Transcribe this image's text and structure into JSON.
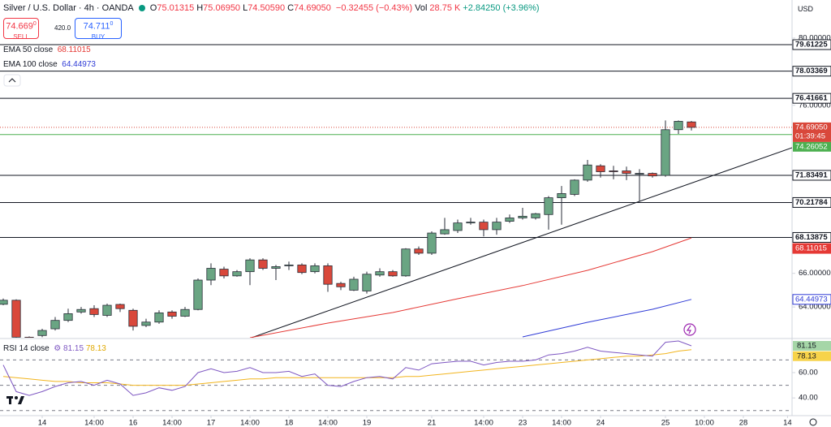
{
  "chart_data": {
    "type": "candlestick",
    "title": "Silver / U.S. Dollar · 4h · OANDA",
    "header": [
      {
        "label": "O",
        "value": "75.01315"
      },
      {
        "label": "H",
        "value": "75.06950"
      },
      {
        "label": "L",
        "value": "74.50590"
      },
      {
        "label": "C",
        "value": "74.69050"
      }
    ],
    "change": "−0.32455 (−0.43%)",
    "volume": {
      "label": "Vol",
      "value": "28.75 K"
    },
    "change_period": "+2.84250 (+3.96%)",
    "sell": {
      "price": "74.669",
      "sup": "0",
      "label": "SELL"
    },
    "spread": "420.0",
    "buy": {
      "price": "74.711",
      "sup": "0",
      "label": "BUY"
    },
    "currency": "USD",
    "up_color": "#6aa583",
    "down_color": "#d9483b",
    "x": [
      0,
      1,
      2,
      3,
      4,
      5,
      6,
      7,
      8,
      9,
      10,
      11,
      12,
      13,
      14,
      15,
      16,
      17,
      18,
      19,
      20,
      21,
      22,
      23,
      24,
      25,
      26,
      27,
      28,
      29,
      30,
      31,
      32,
      33,
      34,
      35,
      36,
      37,
      38,
      39,
      40,
      41,
      42,
      43,
      44,
      45,
      46,
      47,
      48,
      49,
      50,
      51,
      52,
      53
    ],
    "open": [
      64.16,
      64.4,
      62.2,
      62.3,
      62.7,
      63.2,
      63.7,
      63.9,
      63.5,
      64.15,
      63.8,
      62.9,
      63.1,
      63.7,
      63.45,
      63.85,
      65.6,
      66.25,
      65.85,
      66.1,
      66.8,
      66.3,
      66.45,
      66.5,
      66.1,
      66.45,
      65.4,
      65.0,
      64.95,
      65.9,
      66.1,
      65.85,
      67.45,
      67.2,
      68.35,
      68.55,
      69.0,
      69.05,
      68.6,
      69.1,
      69.3,
      69.3,
      69.5,
      70.5,
      70.7,
      71.55,
      72.4,
      72.1,
      72.1,
      71.9,
      71.95,
      71.83,
      74.55,
      75.01315
    ],
    "high": [
      64.5,
      64.45,
      62.25,
      62.7,
      63.4,
      63.9,
      64.0,
      64.1,
      64.2,
      64.2,
      63.9,
      63.3,
      63.8,
      63.8,
      64.0,
      65.7,
      66.6,
      66.4,
      66.2,
      66.9,
      66.9,
      66.5,
      66.7,
      66.6,
      66.6,
      66.6,
      65.5,
      65.8,
      66.1,
      66.3,
      66.2,
      67.5,
      67.6,
      68.5,
      69.3,
      69.2,
      69.3,
      69.2,
      69.3,
      69.5,
      69.9,
      69.6,
      70.6,
      71.2,
      71.6,
      72.75,
      72.5,
      72.4,
      72.35,
      72.2,
      72.0,
      75.1,
      75.1,
      75.0695
    ],
    "low": [
      64.1,
      62.1,
      61.9,
      62.2,
      62.6,
      63.1,
      63.6,
      63.4,
      63.4,
      63.7,
      62.6,
      62.8,
      63.0,
      63.3,
      63.4,
      63.8,
      65.3,
      65.7,
      65.8,
      65.3,
      66.2,
      65.6,
      66.2,
      65.95,
      66.0,
      64.9,
      65.0,
      64.95,
      64.8,
      65.8,
      65.8,
      65.8,
      67.1,
      67.1,
      68.3,
      68.4,
      68.9,
      68.2,
      68.3,
      69.0,
      69.2,
      69.2,
      68.6,
      68.9,
      70.6,
      71.45,
      71.7,
      71.6,
      71.55,
      70.3,
      71.7,
      71.75,
      74.3,
      74.5059
    ],
    "close": [
      64.4,
      62.2,
      62.0,
      62.6,
      63.2,
      63.6,
      63.85,
      63.55,
      64.1,
      63.9,
      62.85,
      63.1,
      63.65,
      63.45,
      63.85,
      65.6,
      66.3,
      65.85,
      66.1,
      66.8,
      66.3,
      66.4,
      66.5,
      66.05,
      66.45,
      65.35,
      65.2,
      65.65,
      65.95,
      66.1,
      65.85,
      67.45,
      67.2,
      68.4,
      68.6,
      69.0,
      69.05,
      68.6,
      69.05,
      69.3,
      69.4,
      69.55,
      70.5,
      70.75,
      71.55,
      72.45,
      72.05,
      72.05,
      71.95,
      71.95,
      71.8,
      74.55,
      75.05,
      74.6905
    ],
    "xlim": [
      -0.25,
      60.75
    ],
    "xticks": [
      {
        "value": 3,
        "label": "14"
      },
      {
        "value": 7,
        "label": "14:00"
      },
      {
        "value": 10,
        "label": "16"
      },
      {
        "value": 13,
        "label": "14:00"
      },
      {
        "value": 16,
        "label": "17"
      },
      {
        "value": 19,
        "label": "14:00"
      },
      {
        "value": 22,
        "label": "18"
      },
      {
        "value": 25,
        "label": "14:00"
      },
      {
        "value": 28,
        "label": "19"
      },
      {
        "value": 33,
        "label": "21"
      },
      {
        "value": 37,
        "label": "14:00"
      },
      {
        "value": 40,
        "label": "23"
      },
      {
        "value": 43,
        "label": "14:00"
      },
      {
        "value": 46,
        "label": "24"
      },
      {
        "value": 51,
        "label": "25"
      },
      {
        "value": 54,
        "label": "10:00"
      },
      {
        "value": 57,
        "label": "28"
      },
      {
        "value": 60.4,
        "label": "14"
      }
    ],
    "ylim": [
      62.17,
      82.27
    ],
    "yticks": [
      {
        "value": 80,
        "label": "80.00000"
      },
      {
        "value": 76,
        "label": "76.00000"
      },
      {
        "value": 66,
        "label": "66.00000"
      },
      {
        "value": 64,
        "label": "64.00000"
      }
    ],
    "levels": [
      79.61225,
      78.03369,
      76.41661,
      71.83491,
      70.21784,
      68.13875
    ],
    "last_price": {
      "value": 74.6905,
      "label": "74.69050",
      "countdown": "01:39:45"
    },
    "green_level": 74.26052,
    "series": [
      {
        "name": "EMA 50 close",
        "color": "#e53935",
        "x": [
          19,
          25,
          30,
          35,
          40,
          45,
          50,
          53
        ],
        "values": [
          62.17,
          63.04,
          63.67,
          64.49,
          65.27,
          66.18,
          67.29,
          68.11015
        ]
      },
      {
        "name": "EMA 100 close",
        "color": "#2f3bd6",
        "x": [
          40,
          45,
          50,
          53
        ],
        "values": [
          62.22,
          63.09,
          63.86,
          64.44973
        ]
      }
    ],
    "rsi": {
      "title": "RSI 14 close",
      "color": "#7e57c2",
      "ma_color": "#f2b51f",
      "values": [
        66,
        45,
        42,
        45,
        49,
        52,
        53,
        50,
        54,
        51,
        42,
        44,
        48,
        46,
        49,
        60,
        63,
        60,
        61,
        64,
        60,
        60,
        61,
        57,
        59,
        50,
        49,
        53,
        56,
        57,
        55,
        64,
        62,
        67,
        68,
        69,
        69,
        66,
        68,
        69,
        69,
        70,
        74,
        75,
        77,
        80,
        77,
        76,
        75,
        74,
        73,
        84,
        85,
        81.15
      ],
      "ma": [
        57,
        56,
        55,
        54,
        53,
        53,
        52,
        52,
        52,
        51,
        50,
        50,
        50,
        50,
        50,
        51,
        52,
        53,
        54,
        55,
        55,
        56,
        56,
        56,
        56,
        56,
        56,
        56,
        56,
        56,
        56,
        57,
        57,
        58,
        59,
        60,
        61,
        62,
        63,
        64,
        65,
        66,
        67,
        68,
        69,
        70,
        71,
        72,
        73,
        73,
        74,
        75,
        77,
        78.13
      ],
      "ylim": [
        26,
        86.3
      ],
      "yticks": [
        {
          "value": 40,
          "label": "40.00"
        },
        {
          "value": 60,
          "label": "60.00"
        }
      ],
      "bands": [
        70,
        50,
        30
      ]
    }
  }
}
